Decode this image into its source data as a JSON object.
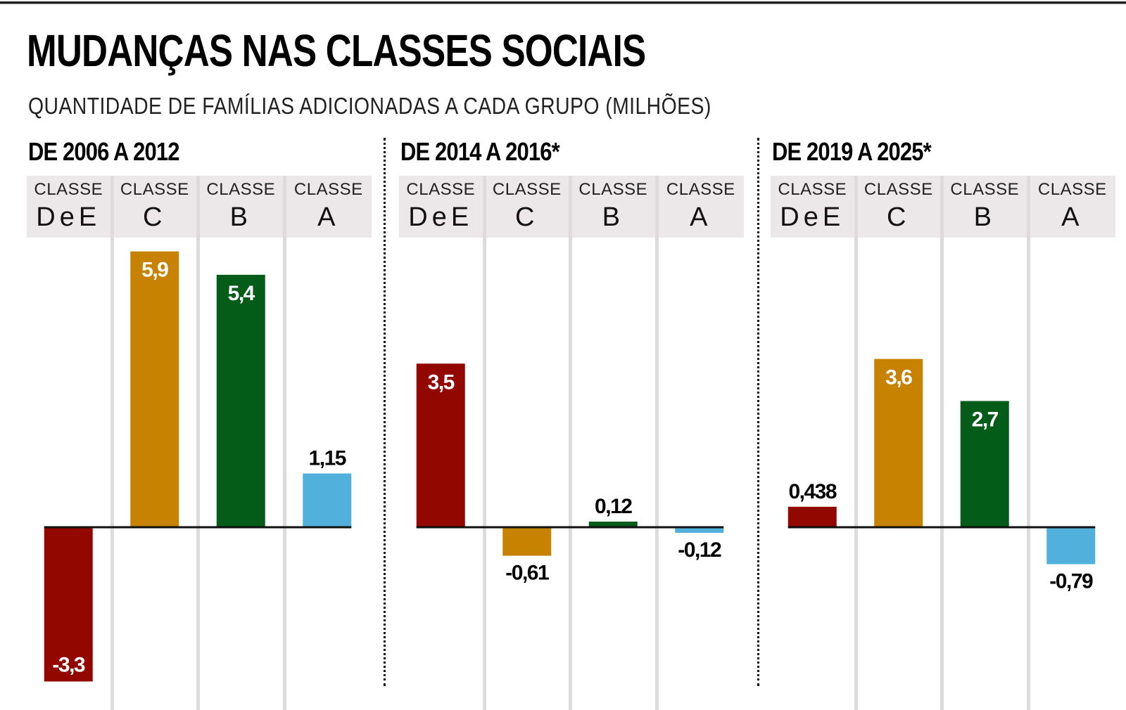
{
  "header": {
    "title": "MUDANÇAS NAS CLASSES SOCIAIS",
    "subtitle": "QUANTIDADE DE FAMÍLIAS ADICIONADAS A CADA GRUPO (MILHÕES)"
  },
  "colors": {
    "DeE": "#920800",
    "C": "#c68200",
    "B": "#045c19",
    "A": "#52b0dc",
    "header_bg": "#ece8ea"
  },
  "chart_data": [
    {
      "type": "bar",
      "title": "DE 2006 A 2012",
      "categories": [
        {
          "top": "CLASSE",
          "name": "D e E",
          "key": "DeE"
        },
        {
          "top": "CLASSE",
          "name": "C",
          "key": "C"
        },
        {
          "top": "CLASSE",
          "name": "B",
          "key": "B"
        },
        {
          "top": "CLASSE",
          "name": "A",
          "key": "A"
        }
      ],
      "values": [
        -3.3,
        5.9,
        5.4,
        1.15
      ],
      "labels": [
        "-3,3",
        "5,9",
        "5,4",
        "1,15"
      ],
      "unit": "milhões de famílias",
      "ylim": [
        -3.3,
        5.9
      ],
      "grid": false
    },
    {
      "type": "bar",
      "title": "DE 2014 A 2016*",
      "categories": [
        {
          "top": "CLASSE",
          "name": "D e E",
          "key": "DeE"
        },
        {
          "top": "CLASSE",
          "name": "C",
          "key": "C"
        },
        {
          "top": "CLASSE",
          "name": "B",
          "key": "B"
        },
        {
          "top": "CLASSE",
          "name": "A",
          "key": "A"
        }
      ],
      "values": [
        3.5,
        -0.61,
        0.12,
        -0.12
      ],
      "labels": [
        "3,5",
        "-0,61",
        "0,12",
        "-0,12"
      ],
      "unit": "milhões de famílias",
      "ylim": [
        -3.3,
        5.9
      ],
      "grid": false
    },
    {
      "type": "bar",
      "title": "DE 2019 A 2025*",
      "categories": [
        {
          "top": "CLASSE",
          "name": "D e E",
          "key": "DeE"
        },
        {
          "top": "CLASSE",
          "name": "C",
          "key": "C"
        },
        {
          "top": "CLASSE",
          "name": "B",
          "key": "B"
        },
        {
          "top": "CLASSE",
          "name": "A",
          "key": "A"
        }
      ],
      "values": [
        0.438,
        3.6,
        2.7,
        -0.79
      ],
      "labels": [
        "0,438",
        "3,6",
        "2,7",
        "-0,79"
      ],
      "unit": "milhões de famílias",
      "ylim": [
        -3.3,
        5.9
      ],
      "grid": false
    }
  ]
}
